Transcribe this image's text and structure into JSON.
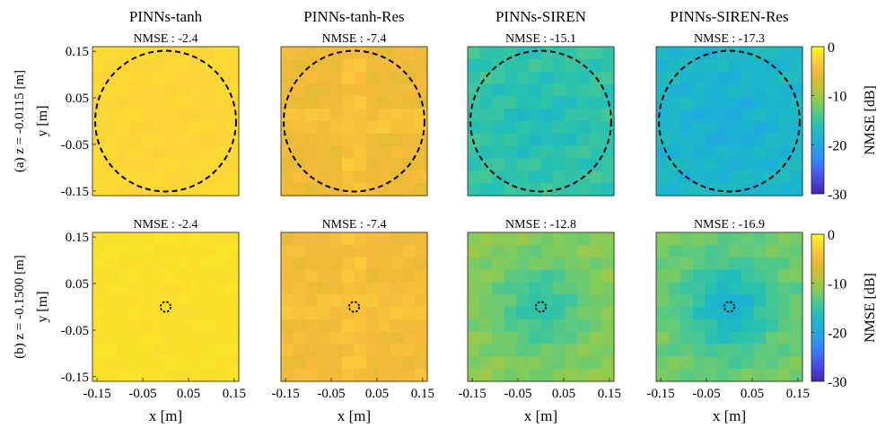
{
  "palette": [
    "#3e26a8",
    "#4741d4",
    "#4561f2",
    "#3386f8",
    "#2aa0e8",
    "#1ab3d2",
    "#25c0b3",
    "#4ac890",
    "#7fcb5f",
    "#aec83b",
    "#d5bd2f",
    "#f6ba3c",
    "#fbd636",
    "#f9fb15"
  ],
  "chart_data": [
    {
      "type": "heatmap",
      "title": "PINNs-tanh",
      "subtitle": "NMSE : -2.4",
      "row_label": "(a) z = -0.0115 [m]",
      "ylabel": "y [m]",
      "xlabel": "",
      "x_ticks": [],
      "y_ticks": [
        "0.15",
        "0.05",
        "-0.05",
        "-0.15"
      ],
      "xlim": [
        -0.16,
        0.16
      ],
      "ylim": [
        -0.16,
        0.16
      ],
      "nmse": -2.4,
      "base_value": -2.4,
      "variation": 0.3,
      "cross_boost": 0,
      "center_dip": 0,
      "circle_radius": 0.154
    },
    {
      "type": "heatmap",
      "title": "PINNs-tanh-Res",
      "subtitle": "NMSE : -7.4",
      "row_label": "",
      "ylabel": "",
      "xlabel": "",
      "x_ticks": [],
      "y_ticks": [],
      "xlim": [
        -0.16,
        0.16
      ],
      "ylim": [
        -0.16,
        0.16
      ],
      "nmse": -7.4,
      "base_value": -5.2,
      "variation": 0.9,
      "cross_boost": 1.2,
      "center_dip": 0,
      "circle_radius": 0.154
    },
    {
      "type": "heatmap",
      "title": "PINNs-SIREN",
      "subtitle": "NMSE : -15.1",
      "row_label": "",
      "ylabel": "",
      "xlabel": "",
      "x_ticks": [],
      "y_ticks": [],
      "xlim": [
        -0.16,
        0.16
      ],
      "ylim": [
        -0.16,
        0.16
      ],
      "nmse": -15.1,
      "base_value": -15.2,
      "variation": 1.4,
      "cross_boost": 0,
      "center_dip": 1.5,
      "circle_radius": 0.154
    },
    {
      "type": "heatmap",
      "title": "PINNs-SIREN-Res",
      "subtitle": "NMSE : -17.3",
      "row_label": "",
      "ylabel": "",
      "xlabel": "",
      "x_ticks": [],
      "y_ticks": [],
      "xlim": [
        -0.16,
        0.16
      ],
      "ylim": [
        -0.16,
        0.16
      ],
      "nmse": -17.3,
      "base_value": -17.6,
      "variation": 1.2,
      "cross_boost": 0,
      "center_dip": 1.5,
      "circle_radius": 0.154
    },
    {
      "type": "heatmap",
      "title": "",
      "subtitle": "NMSE : -2.4",
      "row_label": "(b) z = -0.1500 [m]",
      "ylabel": "y [m]",
      "xlabel": "x [m]",
      "x_ticks": [
        "-0.15",
        "-0.05",
        "0.05",
        "0.15"
      ],
      "y_ticks": [
        "0.15",
        "0.05",
        "-0.05",
        "-0.15"
      ],
      "xlim": [
        -0.16,
        0.16
      ],
      "ylim": [
        -0.16,
        0.16
      ],
      "nmse": -2.4,
      "base_value": -1.8,
      "variation": 0.3,
      "cross_boost": 0,
      "center_dip": 0,
      "circle_radius": 0.011
    },
    {
      "type": "heatmap",
      "title": "",
      "subtitle": "NMSE : -7.4",
      "row_label": "",
      "ylabel": "",
      "xlabel": "x [m]",
      "x_ticks": [
        "-0.15",
        "-0.05",
        "0.05",
        "0.15"
      ],
      "y_ticks": [],
      "xlim": [
        -0.16,
        0.16
      ],
      "ylim": [
        -0.16,
        0.16
      ],
      "nmse": -7.4,
      "base_value": -4.8,
      "variation": 0.9,
      "cross_boost": 0.8,
      "center_dip": 0,
      "circle_radius": 0.011
    },
    {
      "type": "heatmap",
      "title": "",
      "subtitle": "NMSE : -12.8",
      "row_label": "",
      "ylabel": "",
      "xlabel": "x [m]",
      "x_ticks": [
        "-0.15",
        "-0.05",
        "0.05",
        "0.15"
      ],
      "y_ticks": [],
      "xlim": [
        -0.16,
        0.16
      ],
      "ylim": [
        -0.16,
        0.16
      ],
      "nmse": -12.8,
      "base_value": -11.0,
      "variation": 1.2,
      "cross_boost": 0,
      "center_dip": 4.5,
      "circle_radius": 0.011
    },
    {
      "type": "heatmap",
      "title": "",
      "subtitle": "NMSE : -16.9",
      "row_label": "",
      "ylabel": "",
      "xlabel": "x [m]",
      "x_ticks": [
        "-0.15",
        "-0.05",
        "0.05",
        "0.15"
      ],
      "y_ticks": [],
      "xlim": [
        -0.16,
        0.16
      ],
      "ylim": [
        -0.16,
        0.16
      ],
      "nmse": -16.9,
      "base_value": -12.0,
      "variation": 1.2,
      "cross_boost": 0,
      "center_dip": 6.5,
      "circle_radius": 0.011
    }
  ],
  "colorbars": [
    {
      "label": "NMSE [dB]",
      "range": [
        -30,
        0
      ],
      "ticks": [
        "0",
        "-10",
        "-20",
        "-30"
      ]
    },
    {
      "label": "NMSE [dB]",
      "range": [
        -30,
        0
      ],
      "ticks": [
        "0",
        "-10",
        "-20",
        "-30"
      ]
    }
  ]
}
